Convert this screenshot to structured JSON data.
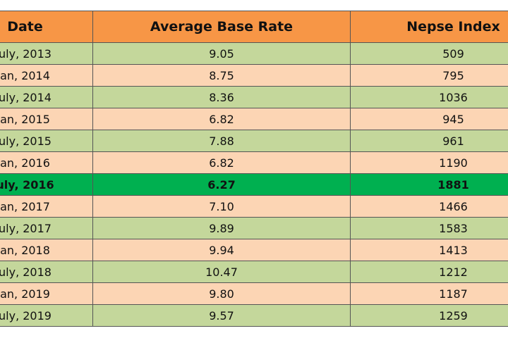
{
  "table": {
    "header": [
      "Date",
      "Average Base Rate",
      "Nepse Index"
    ],
    "rows": [
      [
        "uly, 2013",
        "9.05",
        "509"
      ],
      [
        "an, 2014",
        "8.75",
        "795"
      ],
      [
        "uly, 2014",
        "8.36",
        "1036"
      ],
      [
        "an, 2015",
        "6.82",
        "945"
      ],
      [
        "uly, 2015",
        "7.88",
        "961"
      ],
      [
        "an, 2016",
        "6.82",
        "1190"
      ],
      [
        "uly, 2016",
        "6.27",
        "1881"
      ],
      [
        "an, 2017",
        "7.10",
        "1466"
      ],
      [
        "uly, 2017",
        "9.89",
        "1583"
      ],
      [
        "an, 2018",
        "9.94",
        "1413"
      ],
      [
        "uly, 2018",
        "10.47",
        "1212"
      ],
      [
        "an, 2019",
        "9.80",
        "1187"
      ],
      [
        "uly, 2019",
        "9.57",
        "1259"
      ]
    ],
    "highlight_row": 6
  }
}
